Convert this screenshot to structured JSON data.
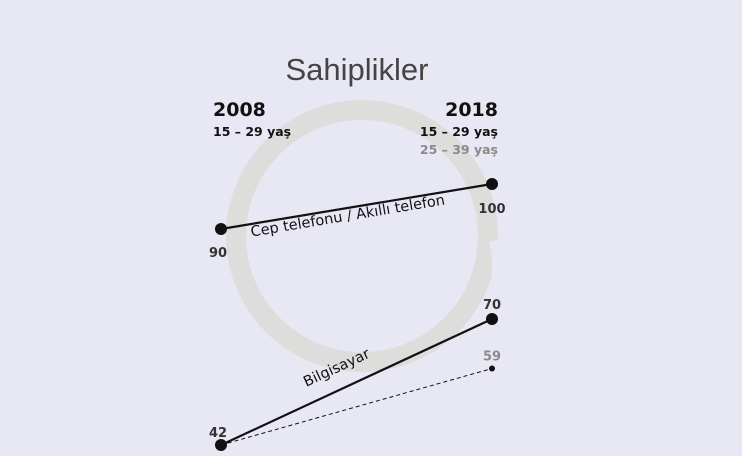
{
  "chart_data": {
    "type": "line",
    "title": "Sahiplikler",
    "x": [
      "2008",
      "2018"
    ],
    "groups": [
      {
        "x": "2008",
        "labels": [
          "15 – 29 yaş"
        ]
      },
      {
        "x": "2018",
        "labels": [
          "15 – 29 yaş",
          "25 – 39 yaş"
        ]
      }
    ],
    "series": [
      {
        "name": "Cep telefonu / Akıllı telefon",
        "style": "solid",
        "values": [
          90,
          100
        ],
        "value_labels": [
          "90",
          "100"
        ]
      },
      {
        "name": "Bilgisayar",
        "style": "solid",
        "values": [
          42,
          70
        ],
        "value_labels": [
          "42",
          "70"
        ]
      },
      {
        "style": "dashed",
        "values": [
          42,
          59
        ],
        "value_labels": [
          "",
          "59"
        ]
      }
    ],
    "ylim": [
      42,
      100
    ],
    "grid": false,
    "legend": "none",
    "colors": {
      "background": "#e8e8f4",
      "line": "#111111",
      "muted": "#8a8a8a",
      "watermark": "#d8d8d8"
    }
  }
}
